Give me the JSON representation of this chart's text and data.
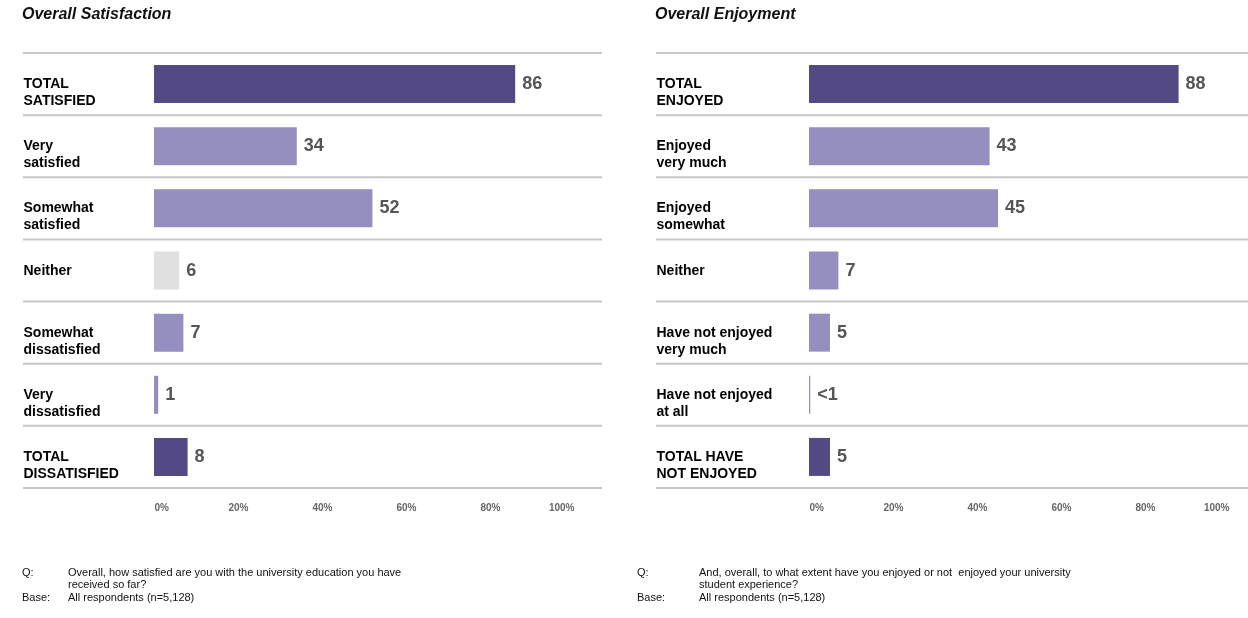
{
  "chart_data": [
    {
      "type": "bar",
      "orientation": "horizontal",
      "title": "Overall Satisfaction",
      "categories": [
        "TOTAL\nSATISFIED",
        "Very\nsatisfied",
        "Somewhat\nsatisfied",
        "Neither",
        "Somewhat\ndissatisfied",
        "Very\ndissatisfied",
        "TOTAL\nDISSATISFIED"
      ],
      "values": [
        86,
        34,
        52,
        6,
        7,
        1,
        8
      ],
      "colors": [
        "#534a85",
        "#958fbf",
        "#958fbf",
        "#e0e0e0",
        "#958fbf",
        "#958fbf",
        "#534a85"
      ],
      "data_labels": true,
      "grid": "y",
      "xlim": [
        0,
        100
      ],
      "xticks": [
        {
          "value": 0,
          "label": "0%"
        },
        {
          "value": 20,
          "label": "20%"
        },
        {
          "value": 40,
          "label": "40%"
        },
        {
          "value": 60,
          "label": "60%"
        },
        {
          "value": 80,
          "label": "80%"
        },
        {
          "value": 100,
          "label": "100%"
        }
      ],
      "annotations": [
        "Q: Overall, how satisfied are you with the university education you have received so far?",
        "Base: All respondents (n=5,128)"
      ]
    },
    {
      "type": "bar",
      "orientation": "horizontal",
      "title": "Overall Enjoyment",
      "categories": [
        "TOTAL\nENJOYED",
        "Enjoyed\nvery much",
        "Enjoyed\nsomewhat",
        "Neither",
        "Have not enjoyed\nvery much",
        "Have not enjoyed\nat all",
        "TOTAL HAVE\nNOT ENJOYED"
      ],
      "values": [
        88,
        43,
        45,
        7,
        5,
        0.3,
        5
      ],
      "value_labels": [
        "88",
        "43",
        "45",
        "7",
        "5",
        "<1",
        "5"
      ],
      "colors": [
        "#534a85",
        "#958fbf",
        "#958fbf",
        "#958fbf",
        "#958fbf",
        "#958fbf",
        "#534a85"
      ],
      "grid": "y",
      "xlim": [
        0,
        100
      ],
      "xticks": [
        {
          "value": 0,
          "label": "0%"
        },
        {
          "value": 20,
          "label": "20%"
        },
        {
          "value": 40,
          "label": "40%"
        },
        {
          "value": 60,
          "label": "60%"
        },
        {
          "value": 80,
          "label": "80%"
        },
        {
          "value": 100,
          "label": "100%"
        }
      ],
      "annotations": [
        "Q: And, overall, to what extent have you enjoyed or not  enjoyed your university student experience?",
        "Base: All respondents (n=5,128)"
      ]
    }
  ]
}
